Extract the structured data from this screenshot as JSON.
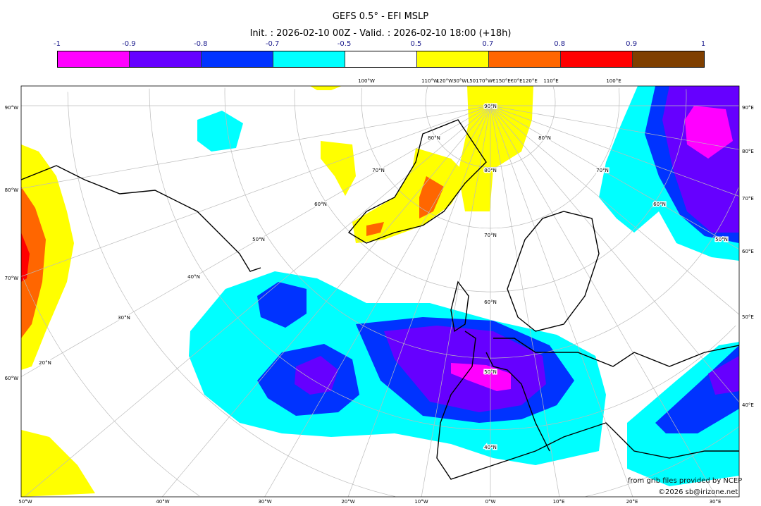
{
  "title": "GEFS 0.5° - EFI MSLP",
  "subtitle": "Init. : 2026-02-10 00Z - Valid. : 2026-02-10 18:00 (+18h)",
  "colorbar": {
    "ticks": [
      "-1",
      "-0.9",
      "-0.8",
      "-0.7",
      "-0.5",
      "0.5",
      "0.7",
      "0.8",
      "0.9",
      "1"
    ],
    "colors": [
      "#ff00ff",
      "#6600ff",
      "#0033ff",
      "#00ffff",
      "#ffffff",
      "#ffff00",
      "#ff6600",
      "#ff0000",
      "#7f3f00"
    ]
  },
  "map": {
    "left_labels": [
      "90°W",
      "80°W",
      "70°W",
      "60°W"
    ],
    "right_labels": [
      "90°E",
      "80°E",
      "70°E",
      "60°E",
      "50°E",
      "40°E"
    ],
    "bottom_labels": [
      "50°W",
      "40°W",
      "30°W",
      "20°W",
      "10°W",
      "0°W",
      "10°E",
      "20°E",
      "30°E"
    ],
    "top_labels": [
      "100°W",
      "110°W",
      "120°W30°WL50170°W€150°E€0°E120°E",
      "110°E",
      "100°E"
    ],
    "center_lat_labels": [
      "90°N",
      "80°N",
      "70°N",
      "60°N",
      "50°N",
      "40°N"
    ],
    "left_lat_labels": [
      "80°N",
      "70°N",
      "60°N",
      "50°N",
      "40°N",
      "30°N",
      "20°N"
    ],
    "right_lat_labels": [
      "80°N",
      "70°N",
      "60°N",
      "50°N"
    ]
  },
  "credits": {
    "source": "from grib files provided by NCEP",
    "copyright": "©2026 sb@irizone.net"
  }
}
